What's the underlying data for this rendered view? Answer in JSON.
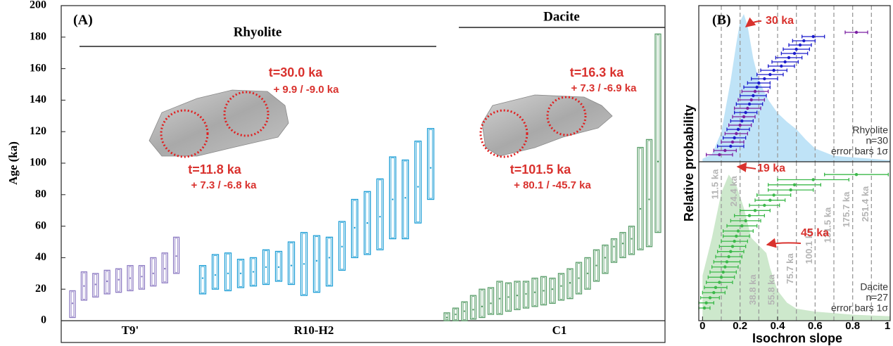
{
  "chart_data": [
    {
      "type": "box",
      "title": "(A)",
      "ylabel": "Age (ka)",
      "ylim": [
        0,
        200
      ],
      "yticks": [
        0,
        20,
        40,
        60,
        80,
        100,
        120,
        140,
        160,
        180,
        200
      ],
      "groups": [
        "Rhyolite",
        "Dacite"
      ],
      "annotations": [
        "t=30.0 ka",
        "+ 9.9 / -9.0 ka",
        "t=11.8 ka",
        "+ 7.3 / -6.8 ka",
        "t=16.3 ka",
        "+ 7.3 / -6.9 ka",
        "t=101.5 ka",
        "+ 80.1 / -45.7 ka"
      ],
      "series": [
        {
          "name": "T9'",
          "color": "#8e7cc3",
          "values": [
            11,
            22,
            23,
            25,
            26,
            27,
            28,
            30,
            33,
            41
          ],
          "low": [
            2,
            13,
            15,
            17,
            18,
            19,
            20,
            22,
            24,
            30
          ],
          "high": [
            19,
            31,
            30,
            32,
            33,
            35,
            35,
            40,
            43,
            53
          ]
        },
        {
          "name": "R10-H2",
          "color": "#1f9fd6",
          "values": [
            27,
            29,
            30,
            30,
            31,
            34,
            34,
            35,
            36,
            38,
            40,
            47,
            59,
            62,
            66,
            77,
            78,
            85,
            97
          ],
          "low": [
            17,
            20,
            19,
            21,
            22,
            23,
            25,
            23,
            16,
            18,
            22,
            32,
            40,
            42,
            45,
            52,
            52,
            62,
            77
          ],
          "high": [
            35,
            42,
            43,
            39,
            40,
            45,
            44,
            50,
            56,
            54,
            53,
            63,
            77,
            82,
            90,
            104,
            102,
            114,
            122
          ]
        },
        {
          "name": "C1",
          "color": "#5a9e6a",
          "values": [
            2,
            4,
            6,
            7,
            9,
            11,
            14,
            15,
            16,
            17,
            18,
            19,
            20,
            22,
            24,
            27,
            30,
            35,
            40,
            47,
            49,
            52,
            71,
            77,
            101
          ],
          "low": [
            0,
            0,
            0,
            1,
            2,
            4,
            4,
            6,
            7,
            8,
            9,
            10,
            11,
            13,
            14,
            17,
            20,
            25,
            30,
            37,
            40,
            42,
            45,
            47,
            56
          ],
          "high": [
            5,
            8,
            12,
            16,
            20,
            21,
            25,
            24,
            25,
            25,
            27,
            28,
            27,
            30,
            33,
            37,
            40,
            45,
            48,
            52,
            56,
            60,
            110,
            115,
            182
          ]
        }
      ]
    },
    {
      "type": "errorbar",
      "title": "(B)",
      "xlabel": "Isochron slope",
      "ylabel": "Relative probability",
      "xlim": [
        -0.02,
        1
      ],
      "xticks": [
        0,
        0.2,
        0.4,
        0.6,
        0.8,
        1
      ],
      "isochrons": {
        "slopes": [
          0.1,
          0.2,
          0.3,
          0.4,
          0.5,
          0.6,
          0.7,
          0.8,
          0.9
        ],
        "labels": [
          "11.5 ka",
          "24.4 ka",
          "38.8 ka",
          "55.8 ka",
          "75.7 ka",
          "100.1 ka",
          "131.5 ka",
          "175.7 ka",
          "251.4 ka"
        ]
      },
      "panels": [
        {
          "name": "Rhyolite",
          "count_label": "n=30",
          "error_label": "error bars 1σ",
          "annotations": [
            "30 ka"
          ],
          "density": {
            "color": "#bfe3f7",
            "ylim": [
              0,
              1
            ],
            "x": [
              0,
              0.05,
              0.1,
              0.15,
              0.18,
              0.2,
              0.22,
              0.24,
              0.27,
              0.3,
              0.35,
              0.4,
              0.45,
              0.5,
              0.55,
              0.6,
              0.7,
              0.8,
              0.9,
              1
            ],
            "y": [
              0.02,
              0.05,
              0.2,
              0.55,
              0.8,
              0.95,
              1,
              0.92,
              0.7,
              0.55,
              0.42,
              0.33,
              0.27,
              0.22,
              0.15,
              0.09,
              0.04,
              0.03,
              0.02,
              0.01
            ]
          },
          "points": {
            "values": [
              0.09,
              0.12,
              0.15,
              0.16,
              0.17,
              0.18,
              0.19,
              0.2,
              0.21,
              0.22,
              0.23,
              0.24,
              0.25,
              0.26,
              0.27,
              0.28,
              0.29,
              0.3,
              0.33,
              0.36,
              0.38,
              0.42,
              0.44,
              0.46,
              0.49,
              0.5,
              0.52,
              0.54,
              0.59,
              0.82
            ],
            "errors": [
              0.07,
              0.06,
              0.07,
              0.06,
              0.06,
              0.06,
              0.06,
              0.06,
              0.06,
              0.06,
              0.06,
              0.07,
              0.07,
              0.07,
              0.07,
              0.07,
              0.07,
              0.06,
              0.07,
              0.07,
              0.07,
              0.07,
              0.07,
              0.07,
              0.07,
              0.07,
              0.06,
              0.06,
              0.06,
              0.06
            ],
            "colors": [
              "#7a1fa2",
              "#7a1fa2",
              "#1a1acc",
              "#7a1fa2",
              "#1a1acc",
              "#7a1fa2",
              "#1a1acc",
              "#7a1fa2",
              "#1a1acc",
              "#7a1fa2",
              "#1a1acc",
              "#7a1fa2",
              "#1a1acc",
              "#7a1fa2",
              "#1a1acc",
              "#7a1fa2",
              "#1a1acc",
              "#1a1acc",
              "#1a1acc",
              "#1a1acc",
              "#1a1acc",
              "#1a1acc",
              "#1a1acc",
              "#1a1acc",
              "#1a1acc",
              "#1a1acc",
              "#1a1acc",
              "#1a1acc",
              "#1a1acc",
              "#7a1fa2"
            ]
          }
        },
        {
          "name": "Dacite",
          "count_label": "n=27",
          "error_label": "error bars 1σ",
          "annotations": [
            "19 ka",
            "45 ka"
          ],
          "density": {
            "color": "#cde8cc",
            "ylim": [
              0,
              1
            ],
            "x": [
              0,
              0.05,
              0.1,
              0.14,
              0.18,
              0.22,
              0.26,
              0.3,
              0.34,
              0.36,
              0.4,
              0.45,
              0.5,
              0.6,
              0.7,
              0.8,
              1
            ],
            "y": [
              0.3,
              0.55,
              0.85,
              0.97,
              0.9,
              0.75,
              0.55,
              0.5,
              0.45,
              0.35,
              0.2,
              0.12,
              0.08,
              0.06,
              0.05,
              0.04,
              0.03
            ]
          },
          "points": {
            "values": [
              0.01,
              0.02,
              0.04,
              0.06,
              0.07,
              0.09,
              0.1,
              0.11,
              0.12,
              0.13,
              0.14,
              0.15,
              0.16,
              0.17,
              0.18,
              0.19,
              0.21,
              0.23,
              0.25,
              0.28,
              0.33,
              0.36,
              0.38,
              0.47,
              0.49,
              0.59,
              0.82
            ],
            "errors": [
              0.03,
              0.04,
              0.05,
              0.06,
              0.06,
              0.07,
              0.07,
              0.07,
              0.07,
              0.07,
              0.07,
              0.07,
              0.07,
              0.07,
              0.07,
              0.08,
              0.08,
              0.08,
              0.08,
              0.08,
              0.08,
              0.08,
              0.09,
              0.12,
              0.14,
              0.19,
              0.17
            ],
            "color": "#3cb84a"
          }
        }
      ]
    }
  ]
}
